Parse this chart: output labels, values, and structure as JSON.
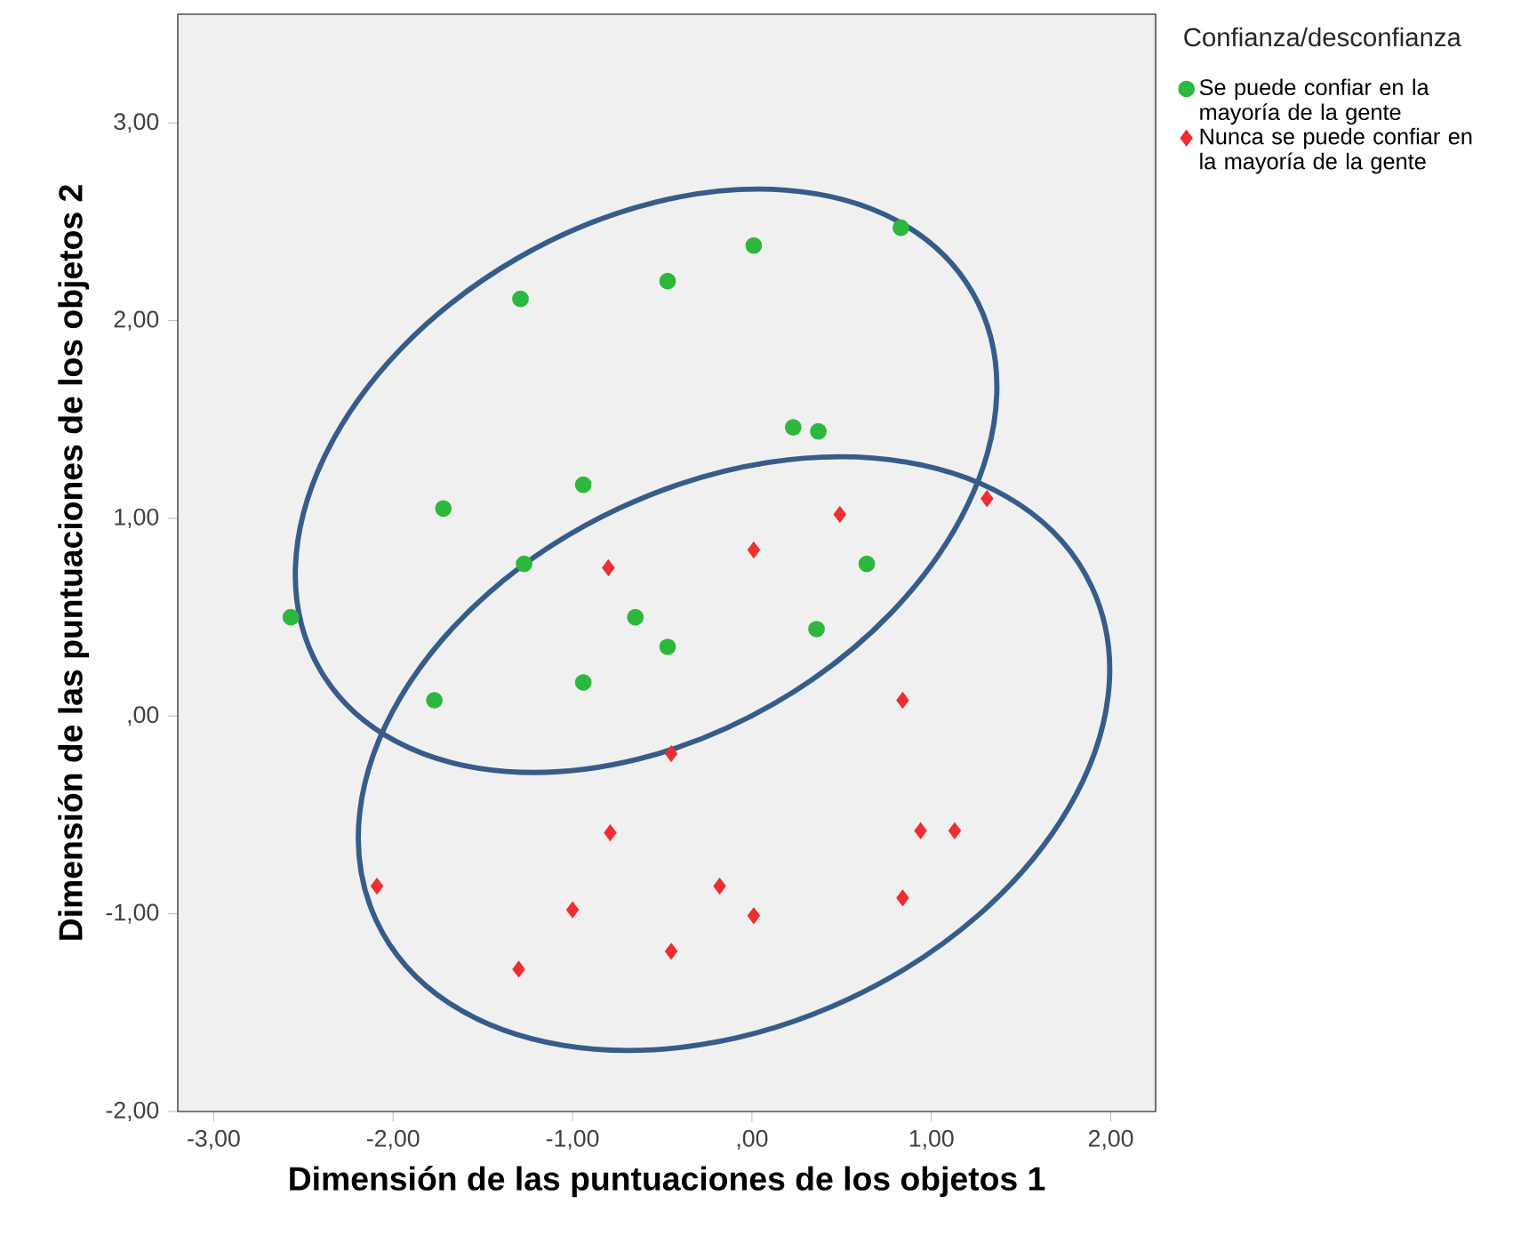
{
  "chart_data": {
    "type": "scatter",
    "xlabel": "Dimensión de las puntuaciones de los objetos 1",
    "ylabel": "Dimensión de las puntuaciones de los objetos 2",
    "legend_title": "Confianza/desconfianza",
    "legend": "top right",
    "xlim": [
      -3.2,
      2.25
    ],
    "ylim": [
      -2.0,
      3.55
    ],
    "xticks": [
      {
        "value": -3,
        "label": "-3,00"
      },
      {
        "value": -2,
        "label": "-2,00"
      },
      {
        "value": -1,
        "label": "-1,00"
      },
      {
        "value": 0,
        "label": ",00"
      },
      {
        "value": 1,
        "label": "1,00"
      },
      {
        "value": 2,
        "label": "2,00"
      }
    ],
    "yticks": [
      {
        "value": -2,
        "label": "-2,00"
      },
      {
        "value": -1,
        "label": "-1,00"
      },
      {
        "value": 0,
        "label": ",00"
      },
      {
        "value": 1,
        "label": "1,00"
      },
      {
        "value": 2,
        "label": "2,00"
      },
      {
        "value": 3,
        "label": "3,00"
      }
    ],
    "series": [
      {
        "name": "Se puede confiar en la mayoría de la gente",
        "color": "#2db83d",
        "marker": "circle",
        "x": [
          -2.57,
          -1.77,
          -1.72,
          -1.29,
          -1.27,
          -0.94,
          -0.94,
          -0.65,
          -0.47,
          -0.47,
          0.01,
          0.23,
          0.37,
          0.36,
          0.83,
          0.64
        ],
        "values": [
          0.5,
          0.08,
          1.05,
          2.11,
          0.77,
          1.17,
          0.17,
          0.5,
          2.2,
          0.35,
          2.38,
          1.46,
          1.44,
          0.44,
          2.47,
          0.77
        ]
      },
      {
        "name": "Nunca se puede confiar en la mayoría de la gente",
        "color": "#ee2e31",
        "marker": "diamond",
        "x": [
          -2.09,
          -1.3,
          -1.0,
          -0.8,
          -0.79,
          -0.45,
          -0.45,
          -0.18,
          0.01,
          0.01,
          0.49,
          0.84,
          0.84,
          0.94,
          1.13,
          1.31
        ],
        "values": [
          -0.86,
          -1.28,
          -0.98,
          0.75,
          -0.59,
          -0.19,
          -1.19,
          -0.86,
          0.84,
          -1.01,
          1.02,
          0.08,
          -0.92,
          -0.58,
          -0.58,
          1.1
        ]
      }
    ]
  }
}
